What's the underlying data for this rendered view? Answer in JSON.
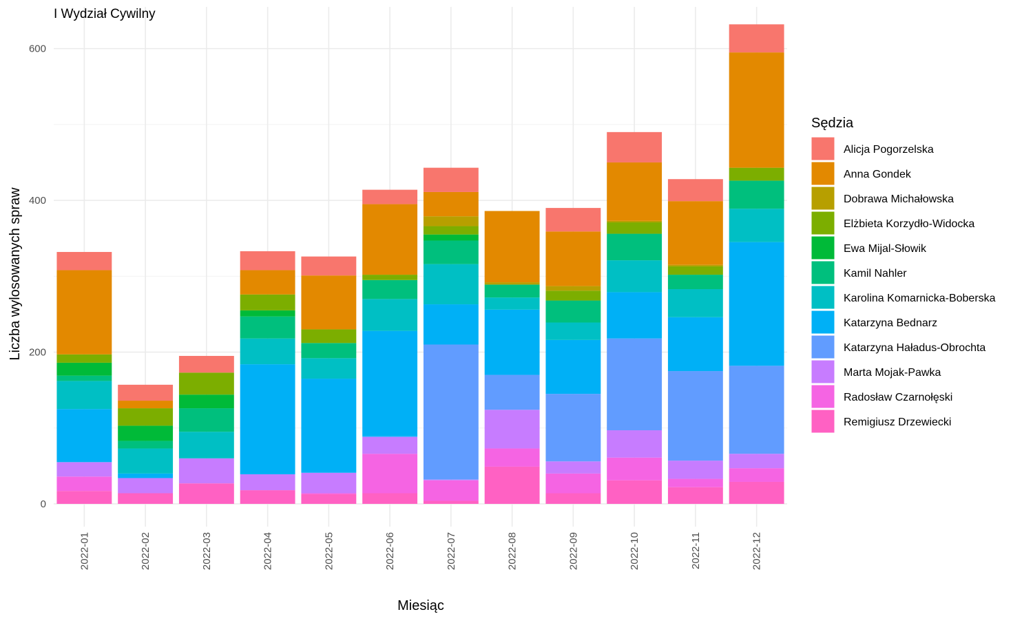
{
  "chart_data": {
    "type": "bar",
    "stacked": true,
    "title": "I Wydział Cywilny",
    "xlabel": "Miesiąc",
    "ylabel": "Liczba wylosowanych spraw",
    "ylim": [
      -30,
      655
    ],
    "yticks": [
      0,
      200,
      400,
      600
    ],
    "grid": true,
    "legend": {
      "title": "Sędzia",
      "position": "right"
    },
    "categories": [
      "2022-01",
      "2022-02",
      "2022-03",
      "2022-04",
      "2022-05",
      "2022-06",
      "2022-07",
      "2022-08",
      "2022-09",
      "2022-10",
      "2022-11",
      "2022-12"
    ],
    "series": [
      {
        "name": "Remigiusz Drzewiecki",
        "color": "#FF61C3",
        "values": [
          17,
          14,
          27,
          18,
          13,
          14,
          4,
          49,
          14,
          31,
          22,
          29
        ]
      },
      {
        "name": "Radosław Czarnołęski",
        "color": "#F564E3",
        "values": [
          19,
          0,
          0,
          0,
          1,
          52,
          27,
          24,
          26,
          30,
          11,
          18
        ]
      },
      {
        "name": "Marta Mojak-Pawka",
        "color": "#C77CFF",
        "values": [
          19,
          20,
          33,
          21,
          27,
          22,
          1,
          51,
          16,
          36,
          24,
          19
        ]
      },
      {
        "name": "Katarzyna Haładus-Obrochta",
        "color": "#619CFF",
        "values": [
          0,
          0,
          0,
          0,
          0,
          1,
          178,
          46,
          89,
          121,
          118,
          116
        ]
      },
      {
        "name": "Katarzyna Bednarz",
        "color": "#00B0F6",
        "values": [
          70,
          6,
          0,
          145,
          124,
          139,
          53,
          86,
          71,
          61,
          71,
          163
        ]
      },
      {
        "name": "Karolina Komarnicka-Boberska",
        "color": "#00BFC4",
        "values": [
          37,
          33,
          35,
          34,
          27,
          42,
          53,
          16,
          23,
          42,
          37,
          44
        ]
      },
      {
        "name": "Kamil Nahler",
        "color": "#00BF7D",
        "values": [
          7,
          10,
          31,
          29,
          20,
          25,
          31,
          17,
          29,
          35,
          19,
          37
        ]
      },
      {
        "name": "Ewa Mijal-Słowik",
        "color": "#00BA38",
        "values": [
          17,
          20,
          18,
          8,
          0,
          0,
          8,
          0,
          0,
          0,
          0,
          0
        ]
      },
      {
        "name": "Elżbieta Korzydło-Widocka",
        "color": "#7CAE00",
        "values": [
          11,
          23,
          29,
          21,
          18,
          7,
          11,
          0,
          13,
          15,
          11,
          17
        ]
      },
      {
        "name": "Dobrawa Michałowska",
        "color": "#B79F00",
        "values": [
          0,
          0,
          0,
          0,
          0,
          0,
          13,
          3,
          6,
          2,
          2,
          0
        ]
      },
      {
        "name": "Anna Gondek",
        "color": "#E38900",
        "values": [
          111,
          10,
          0,
          32,
          71,
          93,
          32,
          94,
          72,
          77,
          84,
          152
        ]
      },
      {
        "name": "Alicja Pogorzelska",
        "color": "#F8766D",
        "values": [
          24,
          21,
          22,
          25,
          25,
          19,
          32,
          0,
          31,
          40,
          29,
          37
        ]
      }
    ]
  }
}
